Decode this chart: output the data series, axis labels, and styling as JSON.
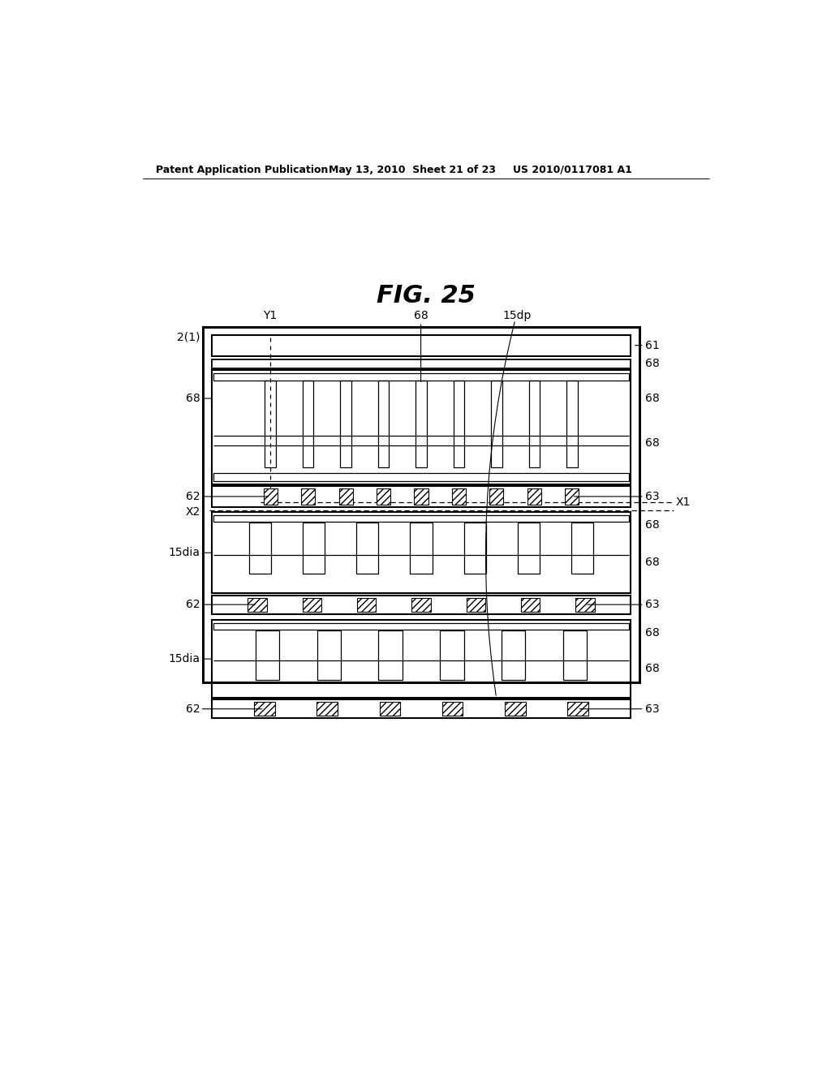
{
  "header_left": "Patent Application Publication",
  "header_mid": "May 13, 2010  Sheet 21 of 23",
  "header_right": "US 2010/0117081 A1",
  "title": "FIG. 25",
  "bg": "#ffffff"
}
